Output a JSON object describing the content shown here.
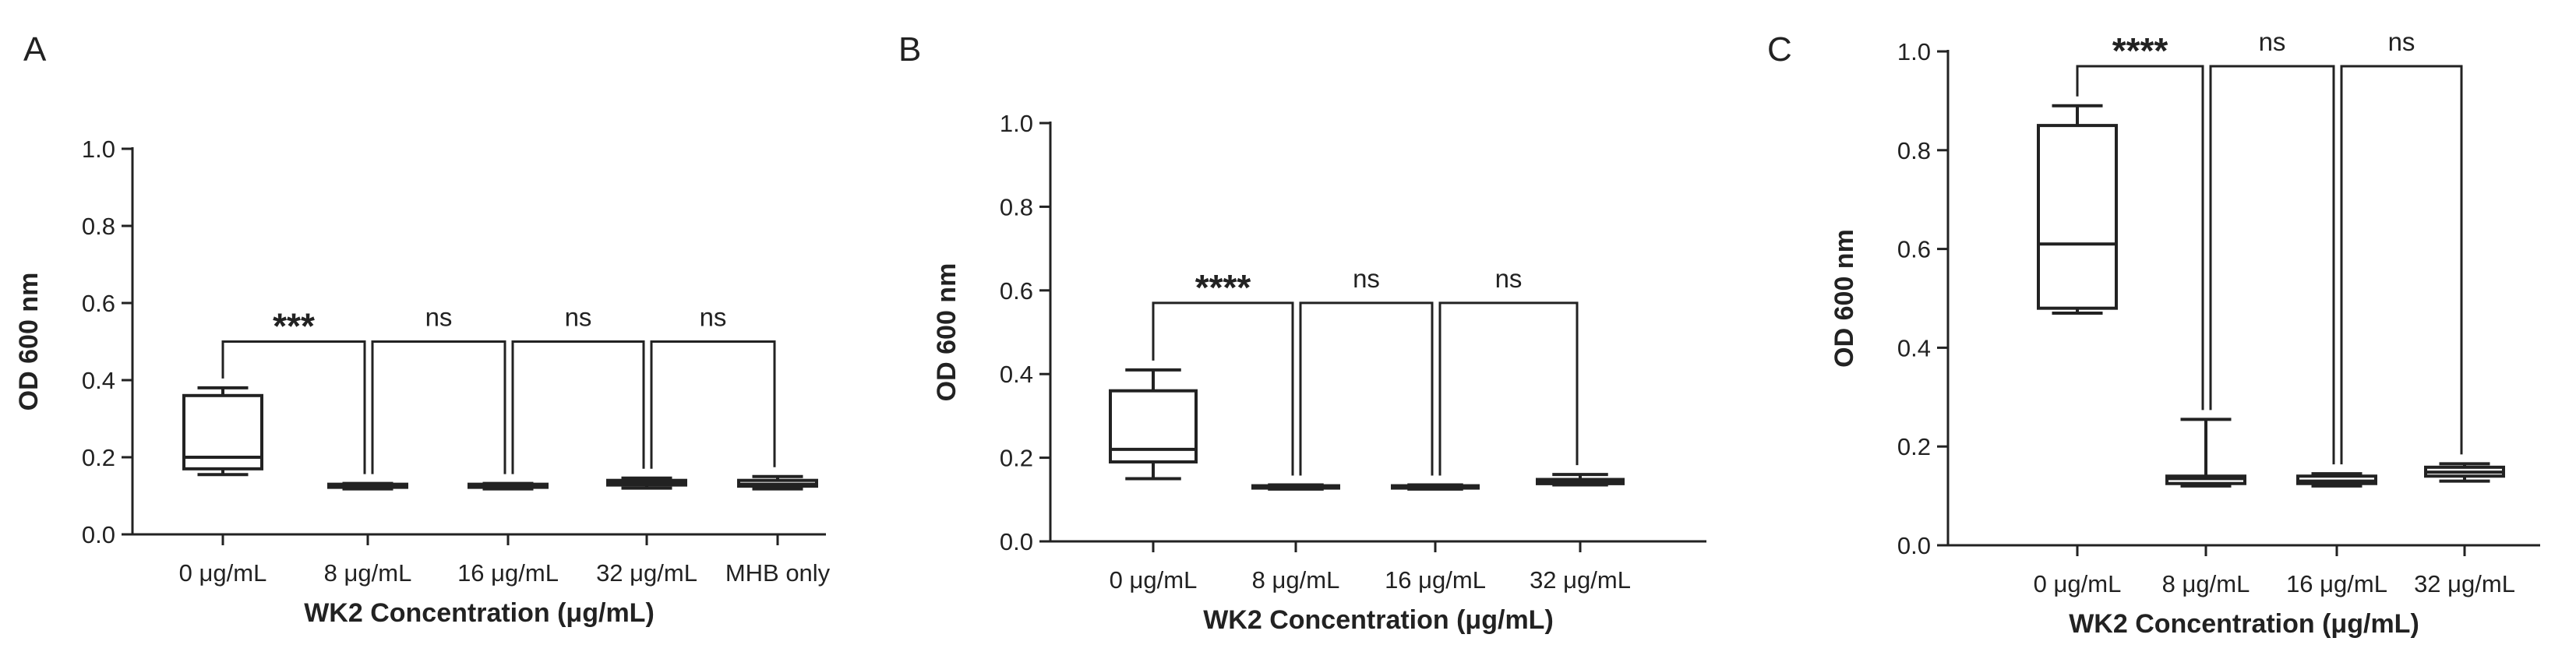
{
  "chart_data": [
    {
      "type": "box",
      "panel": "A",
      "xlabel": "WK2 Concentration (μg/mL)",
      "ylabel": "OD 600 nm",
      "ylim": [
        0.0,
        1.0
      ],
      "yticks": [
        "0.0",
        "0.2",
        "0.4",
        "0.6",
        "0.8",
        "1.0"
      ],
      "categories": [
        "0 μg/mL",
        "8 μg/mL",
        "16 μg/mL",
        "32 μg/mL",
        "MHB only"
      ],
      "boxes": [
        {
          "min": 0.155,
          "q1": 0.17,
          "median": 0.2,
          "q3": 0.36,
          "max": 0.38
        },
        {
          "min": 0.118,
          "q1": 0.122,
          "median": 0.125,
          "q3": 0.13,
          "max": 0.132
        },
        {
          "min": 0.118,
          "q1": 0.122,
          "median": 0.125,
          "q3": 0.13,
          "max": 0.132
        },
        {
          "min": 0.12,
          "q1": 0.128,
          "median": 0.134,
          "q3": 0.14,
          "max": 0.146
        },
        {
          "min": 0.118,
          "q1": 0.125,
          "median": 0.13,
          "q3": 0.14,
          "max": 0.15
        }
      ],
      "comparisons": [
        {
          "from": 0,
          "to": 1,
          "label": "***",
          "level": 0.5
        },
        {
          "from": 1,
          "to": 2,
          "label": "ns",
          "level": 0.5
        },
        {
          "from": 2,
          "to": 3,
          "label": "ns",
          "level": 0.5
        },
        {
          "from": 3,
          "to": 4,
          "label": "ns",
          "level": 0.5
        }
      ]
    },
    {
      "type": "box",
      "panel": "B",
      "xlabel": "WK2 Concentration (μg/mL)",
      "ylabel": "OD 600 nm",
      "ylim": [
        0.0,
        1.0
      ],
      "yticks": [
        "0.0",
        "0.2",
        "0.4",
        "0.6",
        "0.8",
        "1.0"
      ],
      "categories": [
        "0 μg/mL",
        "8 μg/mL",
        "16 μg/mL",
        "32 μg/mL"
      ],
      "boxes": [
        {
          "min": 0.15,
          "q1": 0.19,
          "median": 0.22,
          "q3": 0.36,
          "max": 0.41
        },
        {
          "min": 0.125,
          "q1": 0.128,
          "median": 0.13,
          "q3": 0.133,
          "max": 0.135
        },
        {
          "min": 0.125,
          "q1": 0.128,
          "median": 0.13,
          "q3": 0.133,
          "max": 0.135
        },
        {
          "min": 0.135,
          "q1": 0.138,
          "median": 0.142,
          "q3": 0.148,
          "max": 0.16
        }
      ],
      "comparisons": [
        {
          "from": 0,
          "to": 1,
          "label": "****",
          "level": 0.57
        },
        {
          "from": 1,
          "to": 2,
          "label": "ns",
          "level": 0.57
        },
        {
          "from": 2,
          "to": 3,
          "label": "ns",
          "level": 0.57
        }
      ]
    },
    {
      "type": "box",
      "panel": "C",
      "xlabel": "WK2 Concentration (μg/mL)",
      "ylabel": "OD 600 nm",
      "ylim": [
        0.0,
        1.0
      ],
      "yticks": [
        "0.0",
        "0.2",
        "0.4",
        "0.6",
        "0.8",
        "1.0"
      ],
      "categories": [
        "0 μg/mL",
        "8 μg/mL",
        "16 μg/mL",
        "32 μg/mL"
      ],
      "boxes": [
        {
          "min": 0.47,
          "q1": 0.48,
          "median": 0.61,
          "q3": 0.85,
          "max": 0.89
        },
        {
          "min": 0.12,
          "q1": 0.125,
          "median": 0.135,
          "q3": 0.14,
          "max": 0.255
        },
        {
          "min": 0.12,
          "q1": 0.125,
          "median": 0.13,
          "q3": 0.14,
          "max": 0.145
        },
        {
          "min": 0.13,
          "q1": 0.14,
          "median": 0.148,
          "q3": 0.158,
          "max": 0.165
        }
      ],
      "comparisons": [
        {
          "from": 0,
          "to": 1,
          "label": "****",
          "level": 0.97
        },
        {
          "from": 1,
          "to": 2,
          "label": "ns",
          "level": 0.97
        },
        {
          "from": 2,
          "to": 3,
          "label": "ns",
          "level": 0.97
        }
      ]
    }
  ]
}
